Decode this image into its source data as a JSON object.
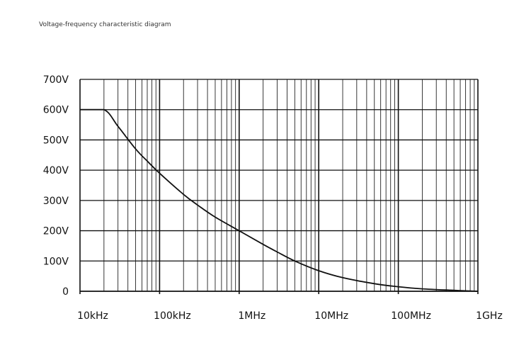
{
  "caption": "Voltage-frequency characteristic diagram",
  "chart_data": {
    "type": "line",
    "x_scale": "log",
    "xlim": [
      "10kHz",
      "1GHz"
    ],
    "ylim": [
      0,
      700
    ],
    "grid": true,
    "x_ticks": [
      "10kHz",
      "100kHz",
      "1MHz",
      "10MHz",
      "100MHz",
      "1GHz"
    ],
    "x_tick_values_hz": [
      10000,
      100000,
      1000000,
      10000000,
      100000000,
      1000000000
    ],
    "y_ticks": [
      "0",
      "100V",
      "200V",
      "300V",
      "400V",
      "500V",
      "600V",
      "700V"
    ],
    "y_tick_values": [
      0,
      100,
      200,
      300,
      400,
      500,
      600,
      700
    ],
    "series": [
      {
        "x_hz": [
          10000,
          20000,
          30000,
          50000,
          70000,
          100000,
          200000,
          300000,
          500000,
          1000000,
          2000000,
          3000000,
          5000000,
          10000000,
          20000000,
          50000000,
          100000000,
          200000000,
          500000000,
          1000000000
        ],
        "y": [
          600,
          600,
          545,
          470,
          430,
          390,
          320,
          285,
          245,
          200,
          155,
          130,
          100,
          68,
          45,
          25,
          15,
          8,
          3,
          0
        ]
      }
    ]
  }
}
